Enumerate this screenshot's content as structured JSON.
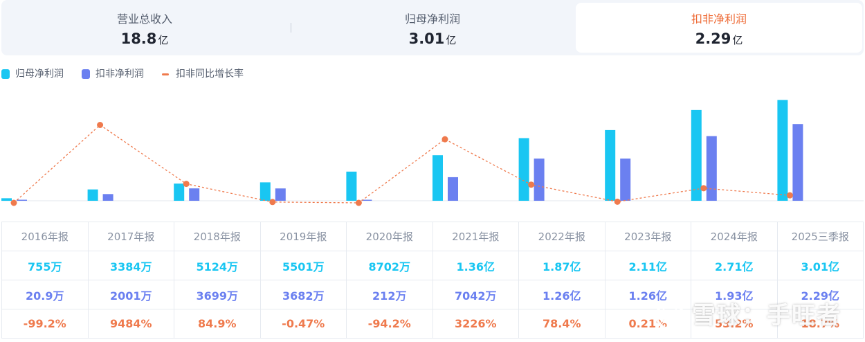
{
  "tabs": [
    {
      "label": "营业总收入",
      "value": "18.8",
      "unit": "亿",
      "active": false
    },
    {
      "label": "归母净利润",
      "value": "3.01",
      "unit": "亿",
      "active": false
    },
    {
      "label": "扣非净利润",
      "value": "2.29",
      "unit": "亿",
      "active": true
    }
  ],
  "legend": [
    {
      "name": "归母净利润",
      "color": "#19c6f2",
      "shape": "bar"
    },
    {
      "name": "扣非净利润",
      "color": "#6b80f0",
      "shape": "bar"
    },
    {
      "name": "扣非同比增长率",
      "color": "#ef7a4d",
      "shape": "line"
    }
  ],
  "colors": {
    "net_profit": "#19c6f2",
    "deducted_net_profit": "#6b80f0",
    "growth": "#ef7a4d"
  },
  "chart_data": {
    "type": "bar",
    "categories": [
      "2016年报",
      "2017年报",
      "2018年报",
      "2019年报",
      "2020年报",
      "2021年报",
      "2022年报",
      "2023年报",
      "2024年报",
      "2025三季报"
    ],
    "series": [
      {
        "name": "归母净利润",
        "type": "bar",
        "unit": "万",
        "values": [
          755,
          3384,
          5124,
          5501,
          8702,
          13600,
          18700,
          21100,
          27100,
          30100
        ]
      },
      {
        "name": "扣非净利润",
        "type": "bar",
        "unit": "万",
        "values": [
          20.9,
          2001,
          3699,
          3682,
          212,
          7042,
          12600,
          12600,
          19300,
          22900
        ]
      },
      {
        "name": "扣非同比增长率",
        "type": "line",
        "unit": "%",
        "values": [
          -99.2,
          9484,
          84.9,
          -0.47,
          -94.2,
          3226,
          78.4,
          0.21,
          53.2,
          18.7
        ]
      }
    ],
    "legend_position": "top-left",
    "grid": false
  },
  "table": {
    "years": [
      "2016年报",
      "2017年报",
      "2018年报",
      "2019年报",
      "2020年报",
      "2021年报",
      "2022年报",
      "2023年报",
      "2024年报",
      "2025三季报"
    ],
    "net_profit": [
      "755万",
      "3384万",
      "5124万",
      "5501万",
      "8702万",
      "1.36亿",
      "1.87亿",
      "2.11亿",
      "2.71亿",
      "3.01亿"
    ],
    "deducted_net_profit": [
      "20.9万",
      "2001万",
      "3699万",
      "3682万",
      "212万",
      "7042万",
      "1.26亿",
      "1.26亿",
      "1.93亿",
      "2.29亿"
    ],
    "growth": [
      "-99.2%",
      "9484%",
      "84.9%",
      "-0.47%",
      "-94.2%",
      "3226%",
      "78.4%",
      "0.21%",
      "53.2%",
      "18.7%"
    ]
  },
  "watermark": {
    "text": "雪球：手旺者"
  }
}
